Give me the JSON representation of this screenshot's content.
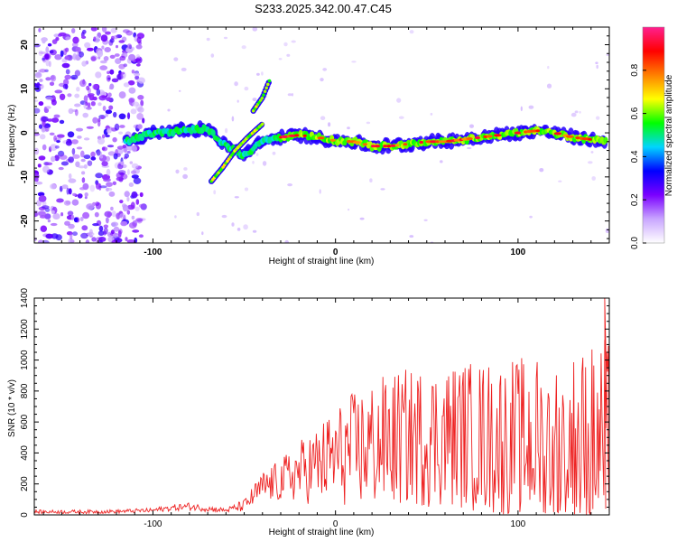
{
  "title": "S233.2025.342.00.47.C45",
  "chart_data": [
    {
      "type": "heatmap",
      "xlabel": "Height of straight line (km)",
      "ylabel": "Frequency (Hz)",
      "xlim": [
        -165,
        150
      ],
      "ylim": [
        -25,
        24
      ],
      "xticks": [
        "-100",
        "0",
        "100"
      ],
      "xtick_values": [
        -100,
        0,
        100
      ],
      "yticks": [
        "-20",
        "-10",
        "0",
        "10",
        "20"
      ],
      "ytick_values": [
        -20,
        -10,
        0,
        10,
        20
      ],
      "ridge": {
        "x": [
          -115,
          -100,
          -85,
          -70,
          -60,
          -50,
          -40,
          -30,
          -20,
          -10,
          0,
          10,
          20,
          30,
          40,
          50,
          60,
          70,
          80,
          90,
          100,
          110,
          120,
          130,
          140,
          148
        ],
        "y": [
          -2,
          0,
          0.5,
          1,
          -3,
          -5,
          -2,
          -1,
          -0.5,
          -1,
          -1.8,
          -2,
          -3,
          -3,
          -2.5,
          -2,
          -2,
          -1.5,
          -1,
          -0.5,
          0,
          0.5,
          0,
          -1,
          -1.5,
          -2
        ]
      },
      "branches": [
        {
          "x": [
            -68,
            -62,
            -55,
            -48,
            -40
          ],
          "y": [
            -11,
            -8,
            -4,
            -1,
            2
          ]
        },
        {
          "x": [
            -45,
            -40,
            -36
          ],
          "y": [
            5,
            8,
            12
          ]
        }
      ],
      "colorbar": {
        "label": "Normalized spectral amplitude",
        "range": [
          0,
          1
        ],
        "ticks": [
          "0.0",
          "0.2",
          "0.4",
          "0.6",
          "0.8"
        ],
        "tick_values": [
          0,
          0.2,
          0.4,
          0.6,
          0.8
        ],
        "colors": [
          "#ffffff",
          "#c9a6ff",
          "#7a00ff",
          "#0000ff",
          "#00d5ff",
          "#00ff00",
          "#ffff00",
          "#ff8000",
          "#ff0000",
          "#ff2090"
        ]
      }
    },
    {
      "type": "line",
      "xlabel": "Height of straight line (km)",
      "ylabel": "SNR (10 * v/v)",
      "xlim": [
        -165,
        150
      ],
      "ylim": [
        0,
        1400
      ],
      "xticks": [
        "-100",
        "0",
        "100"
      ],
      "xtick_values": [
        -100,
        0,
        100
      ],
      "yticks": [
        "0",
        "200",
        "400",
        "600",
        "800",
        "1000",
        "1200",
        "1400"
      ],
      "ytick_values": [
        0,
        200,
        400,
        600,
        800,
        1000,
        1200,
        1400
      ],
      "series": [
        {
          "name": "SNR",
          "color": "#ee2222",
          "envelope_x": [
            -165,
            -140,
            -120,
            -100,
            -90,
            -80,
            -70,
            -60,
            -50,
            -40,
            -30,
            -20,
            -10,
            0,
            10,
            20,
            30,
            40,
            50,
            60,
            70,
            80,
            90,
            100,
            110,
            120,
            130,
            140,
            148
          ],
          "envelope_mean": [
            20,
            20,
            22,
            30,
            45,
            55,
            40,
            30,
            60,
            180,
            220,
            280,
            320,
            380,
            420,
            450,
            480,
            500,
            500,
            510,
            520,
            500,
            490,
            480,
            470,
            470,
            460,
            460,
            450
          ],
          "envelope_amp": [
            12,
            12,
            12,
            15,
            20,
            25,
            20,
            15,
            40,
            100,
            140,
            200,
            260,
            320,
            380,
            420,
            440,
            450,
            460,
            470,
            480,
            500,
            520,
            540,
            560,
            580,
            600,
            650,
            700
          ]
        }
      ]
    }
  ]
}
